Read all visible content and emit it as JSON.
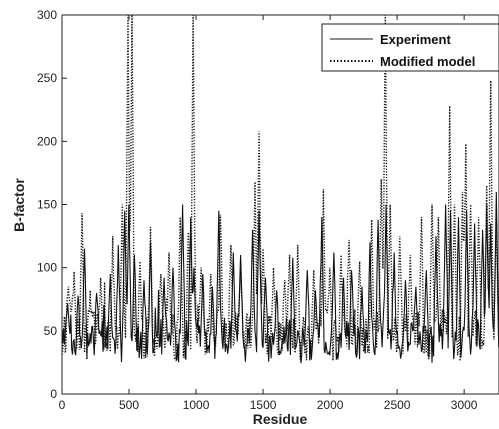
{
  "chart_data": {
    "type": "line",
    "title": "",
    "xlabel": "Residue",
    "ylabel": "B-factor",
    "xlim": [
      0,
      3260
    ],
    "ylim": [
      0,
      300
    ],
    "xticks": [
      0,
      500,
      1000,
      1500,
      2000,
      2500,
      3000
    ],
    "xtick_labels": [
      "0",
      "500",
      "1000",
      "1500",
      "2000",
      "2500",
      "3000"
    ],
    "yticks": [
      0,
      50,
      100,
      150,
      200,
      250,
      300
    ],
    "ytick_labels": [
      "0",
      "50",
      "100",
      "150",
      "200",
      "250",
      "300"
    ],
    "grid": false,
    "legend_position": "top-right",
    "baseline_pattern": "random fluctuation between ~20 and ~75 with many sharp peaks",
    "series": [
      {
        "name": "Experiment",
        "style": "solid",
        "color": "#111111",
        "peaks": [
          [
            40,
            72
          ],
          [
            120,
            78
          ],
          [
            170,
            115
          ],
          [
            260,
            80
          ],
          [
            360,
            95
          ],
          [
            420,
            118
          ],
          [
            470,
            145
          ],
          [
            500,
            150
          ],
          [
            540,
            110
          ],
          [
            610,
            90
          ],
          [
            660,
            120
          ],
          [
            760,
            92
          ],
          [
            830,
            100
          ],
          [
            900,
            150
          ],
          [
            960,
            140
          ],
          [
            985,
            100
          ],
          [
            1050,
            95
          ],
          [
            1120,
            85
          ],
          [
            1170,
            145
          ],
          [
            1280,
            112
          ],
          [
            1330,
            110
          ],
          [
            1420,
            130
          ],
          [
            1470,
            145
          ],
          [
            1520,
            92
          ],
          [
            1600,
            82
          ],
          [
            1720,
            108
          ],
          [
            1830,
            98
          ],
          [
            1890,
            82
          ],
          [
            1940,
            140
          ],
          [
            2030,
            112
          ],
          [
            2100,
            92
          ],
          [
            2160,
            98
          ],
          [
            2240,
            85
          ],
          [
            2300,
            120
          ],
          [
            2360,
            138
          ],
          [
            2420,
            150
          ],
          [
            2480,
            112
          ],
          [
            2560,
            90
          ],
          [
            2640,
            85
          ],
          [
            2720,
            98
          ],
          [
            2790,
            125
          ],
          [
            2860,
            150
          ],
          [
            2900,
            145
          ],
          [
            2960,
            140
          ],
          [
            3020,
            145
          ],
          [
            3080,
            135
          ],
          [
            3140,
            130
          ],
          [
            3170,
            150
          ],
          [
            3200,
            135
          ],
          [
            3240,
            160
          ]
        ]
      },
      {
        "name": "Modified model",
        "style": "dotted",
        "color": "#111111",
        "peaks": [
          [
            50,
            85
          ],
          [
            90,
            97
          ],
          [
            150,
            143
          ],
          [
            210,
            82
          ],
          [
            290,
            92
          ],
          [
            380,
            125
          ],
          [
            450,
            150
          ],
          [
            490,
            300
          ],
          [
            520,
            300
          ],
          [
            580,
            105
          ],
          [
            660,
            132
          ],
          [
            740,
            95
          ],
          [
            800,
            112
          ],
          [
            880,
            140
          ],
          [
            940,
            128
          ],
          [
            975,
            300
          ],
          [
            1040,
            100
          ],
          [
            1110,
            95
          ],
          [
            1180,
            142
          ],
          [
            1260,
            118
          ],
          [
            1330,
            105
          ],
          [
            1440,
            168
          ],
          [
            1470,
            208
          ],
          [
            1500,
            115
          ],
          [
            1580,
            100
          ],
          [
            1660,
            90
          ],
          [
            1700,
            110
          ],
          [
            1760,
            118
          ],
          [
            1880,
            98
          ],
          [
            1950,
            162
          ],
          [
            2000,
            100
          ],
          [
            2080,
            110
          ],
          [
            2140,
            122
          ],
          [
            2220,
            105
          ],
          [
            2310,
            138
          ],
          [
            2380,
            170
          ],
          [
            2410,
            300
          ],
          [
            2450,
            150
          ],
          [
            2520,
            125
          ],
          [
            2600,
            110
          ],
          [
            2680,
            140
          ],
          [
            2760,
            150
          ],
          [
            2810,
            140
          ],
          [
            2890,
            228
          ],
          [
            2930,
            150
          ],
          [
            2990,
            160
          ],
          [
            3010,
            198
          ],
          [
            3050,
            150
          ],
          [
            3110,
            140
          ],
          [
            3170,
            165
          ],
          [
            3200,
            248
          ],
          [
            3240,
            135
          ]
        ]
      }
    ]
  }
}
